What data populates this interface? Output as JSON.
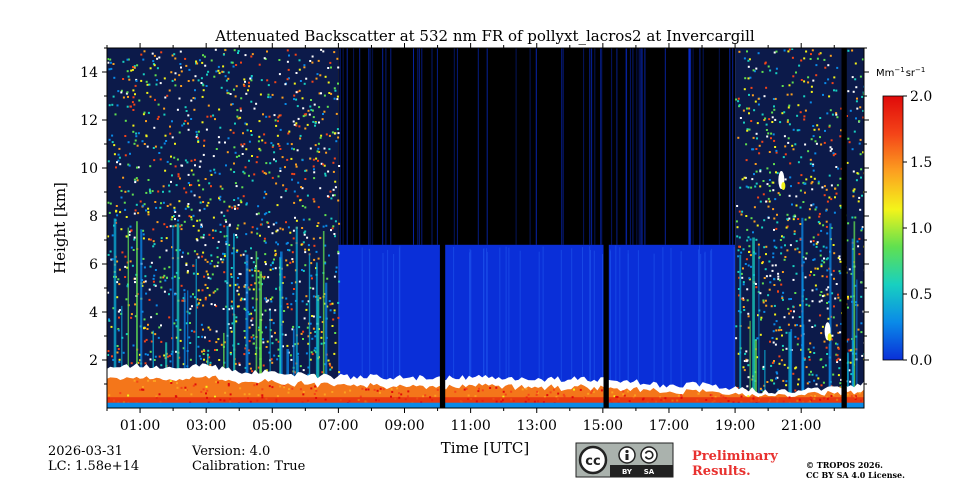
{
  "chart_data": {
    "type": "heatmap",
    "title": "Attenuated Backscatter at 532 nm FR of pollyxt_lacros2 at Invercargill",
    "xlabel": "Time [UTC]",
    "ylabel": "Height [km]",
    "xlim": [
      0,
      22.9
    ],
    "ylim": [
      0,
      15
    ],
    "x_ticks": [
      {
        "value": 1,
        "label": "01:00"
      },
      {
        "value": 3,
        "label": "03:00"
      },
      {
        "value": 5,
        "label": "05:00"
      },
      {
        "value": 7,
        "label": "07:00"
      },
      {
        "value": 9,
        "label": "09:00"
      },
      {
        "value": 11,
        "label": "11:00"
      },
      {
        "value": 13,
        "label": "13:00"
      },
      {
        "value": 15,
        "label": "15:00"
      },
      {
        "value": 17,
        "label": "17:00"
      },
      {
        "value": 19,
        "label": "19:00"
      },
      {
        "value": 21,
        "label": "21:00"
      }
    ],
    "y_ticks": [
      {
        "value": 2,
        "label": "2"
      },
      {
        "value": 4,
        "label": "4"
      },
      {
        "value": 6,
        "label": "6"
      },
      {
        "value": 8,
        "label": "8"
      },
      {
        "value": 10,
        "label": "10"
      },
      {
        "value": 12,
        "label": "12"
      },
      {
        "value": 14,
        "label": "14"
      }
    ],
    "colorbar": {
      "unit_base": "Mm",
      "unit_exp1": "−1",
      "unit_mid": "sr",
      "unit_exp2": "−1",
      "range": [
        0,
        2
      ],
      "ticks": [
        {
          "value": 0.0,
          "label": "0.0"
        },
        {
          "value": 0.5,
          "label": "0.5"
        },
        {
          "value": 1.0,
          "label": "1.0"
        },
        {
          "value": 1.5,
          "label": "1.5"
        },
        {
          "value": 2.0,
          "label": "2.0"
        }
      ],
      "colors": [
        "#0a2fd8",
        "#0a8ae8",
        "#18d0c0",
        "#60e050",
        "#f4f41a",
        "#fca020",
        "#f44418",
        "#e00a0a"
      ]
    },
    "phases": [
      {
        "from": 0.0,
        "to": 7.0,
        "kind": "night"
      },
      {
        "from": 7.0,
        "to": 19.0,
        "kind": "day"
      },
      {
        "from": 19.0,
        "to": 22.9,
        "kind": "night"
      }
    ],
    "gaps": [
      {
        "time": 10.15,
        "width_h": 0.16
      },
      {
        "time": 15.1,
        "width_h": 0.16
      },
      {
        "time": 22.3,
        "width_h": 0.16
      }
    ],
    "day_signal_top_km": 6.8,
    "boundary_layer": {
      "times": [
        0,
        1,
        2,
        3,
        4,
        5,
        6,
        7,
        8,
        9,
        10,
        11,
        12,
        13,
        14,
        15,
        16,
        17,
        18,
        19,
        20,
        21,
        22,
        22.9
      ],
      "top_km": [
        1.7,
        1.8,
        1.7,
        1.8,
        1.5,
        1.5,
        1.4,
        1.3,
        1.3,
        1.3,
        1.2,
        1.3,
        1.3,
        1.2,
        1.2,
        1.2,
        1.1,
        0.9,
        1.0,
        0.8,
        0.7,
        0.7,
        0.9,
        1.0
      ]
    },
    "cloud_patches": [
      {
        "time": 20.4,
        "height_km": 9.5
      },
      {
        "time": 21.8,
        "height_km": 3.2
      }
    ]
  },
  "footer": {
    "date": "2026-03-31",
    "lc": "LC: 1.58e+14",
    "version": "Version: 4.0",
    "calibration": "Calibration: True",
    "preliminary_line1": "Preliminary",
    "preliminary_line2": "Results.",
    "copyright_line1": "© TROPOS 2026.",
    "copyright_line2": "CC BY SA 4.0 License.",
    "license_badge": {
      "cc": "cc",
      "by": "BY",
      "sa": "SA"
    }
  },
  "colors": {
    "axes": "#000000",
    "background": "#ffffff",
    "gap": "#000000",
    "preliminary": "#e8312f",
    "license_badge_bg": "#aab2ad"
  }
}
